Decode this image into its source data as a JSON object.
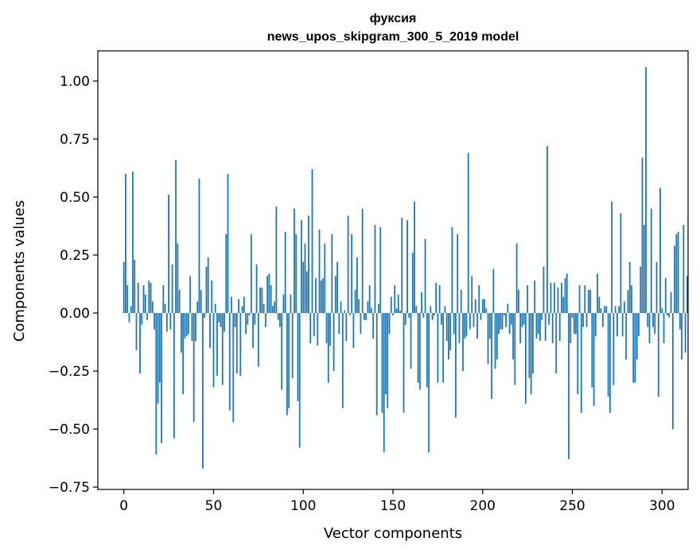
{
  "chart_data": {
    "type": "bar",
    "title": "фуксия",
    "subtitle": "news_upos_skipgram_300_5_2019 model",
    "xlabel": "Vector components",
    "ylabel": "Components values",
    "xlim": [
      -14.5,
      314.5
    ],
    "ylim": [
      -0.76,
      1.13
    ],
    "xticks": [
      0,
      50,
      100,
      150,
      200,
      250,
      300
    ],
    "xtick_labels": [
      "0",
      "50",
      "100",
      "150",
      "200",
      "250",
      "300"
    ],
    "yticks": [
      -0.75,
      -0.5,
      -0.25,
      0.0,
      0.25,
      0.5,
      0.75,
      1.0
    ],
    "ytick_labels": [
      "−0.75",
      "−0.50",
      "−0.25",
      "0.00",
      "0.25",
      "0.50",
      "0.75",
      "1.00"
    ],
    "grid": false,
    "bar_color": "#1f77b4",
    "values": [
      0.22,
      0.6,
      0.12,
      -0.04,
      0.03,
      0.61,
      0.23,
      -0.16,
      0.13,
      -0.26,
      -0.05,
      0.12,
      0.08,
      -0.03,
      0.14,
      0.13,
      0.05,
      -0.07,
      -0.61,
      -0.39,
      -0.3,
      -0.56,
      0.12,
      0.04,
      -0.08,
      0.51,
      -0.07,
      0.21,
      -0.54,
      0.66,
      0.3,
      0.1,
      -0.17,
      -0.35,
      -0.11,
      -0.1,
      -0.09,
      0.16,
      -0.12,
      -0.47,
      -0.12,
      0.05,
      0.58,
      0.1,
      -0.67,
      -0.02,
      0.2,
      0.24,
      -0.15,
      0.14,
      -0.32,
      0.04,
      -0.27,
      -0.04,
      -0.06,
      -0.31,
      -0.08,
      0.34,
      0.6,
      -0.42,
      0.07,
      -0.47,
      -0.06,
      -0.26,
      0.06,
      -0.27,
      0.03,
      0.07,
      -0.09,
      -0.05,
      -0.01,
      0.34,
      -0.15,
      -0.05,
      0.21,
      -0.23,
      0.11,
      0.11,
      0.04,
      -0.06,
      0.16,
      0.17,
      0.12,
      0.03,
      0.05,
      0.46,
      -0.03,
      -0.06,
      -0.33,
      0.08,
      0.35,
      -0.44,
      -0.41,
      0.08,
      -0.28,
      0.45,
      0.34,
      -0.38,
      -0.58,
      0.4,
      0.22,
      0.3,
      0.18,
      0.42,
      -0.13,
      0.62,
      -0.1,
      0.15,
      -0.14,
      0.36,
      0.14,
      0.15,
      0.3,
      -0.13,
      -0.3,
      -0.14,
      0.34,
      -0.25,
      0.16,
      0.22,
      -0.09,
      0.05,
      -0.41,
      0.01,
      -0.12,
      0.42,
      -0.01,
      0.34,
      -0.15,
      0.1,
      0.24,
      0.06,
      -0.09,
      0.45,
      -0.03,
      -0.03,
      0.05,
      0.12,
      0.02,
      -0.11,
      0.38,
      -0.44,
      0.04,
      0.37,
      -0.43,
      -0.6,
      -0.35,
      -0.41,
      -0.09,
      0.07,
      -0.01,
      0.12,
      0.02,
      0.08,
      0.01,
      0.41,
      -0.43,
      -0.05,
      0.4,
      -0.02,
      -0.24,
      0.26,
      0.48,
      0.03,
      -0.3,
      -0.33,
      0.09,
      -0.02,
      0.32,
      -0.32,
      -0.6,
      0.03,
      -0.03,
      -0.01,
      0.13,
      -0.3,
      0.12,
      -0.05,
      -0.3,
      0.03,
      -0.12,
      -0.2,
      -0.16,
      0.37,
      -0.09,
      -0.45,
      0.34,
      -0.13,
      0.1,
      -0.25,
      -0.11,
      -0.1,
      0.69,
      -0.07,
      0.16,
      -0.06,
      0.06,
      -0.11,
      0.12,
      -0.03,
      0.06,
      0.06,
      0.02,
      -0.22,
      -0.11,
      -0.37,
      0.19,
      -0.24,
      -0.2,
      -0.09,
      -0.07,
      -0.07,
      -0.01,
      -0.06,
      0.04,
      -0.09,
      -0.05,
      -0.2,
      -0.31,
      0.3,
      0.1,
      -0.13,
      -0.06,
      -0.05,
      -0.39,
      0.12,
      -0.28,
      -0.35,
      -0.26,
      0.14,
      -0.11,
      -0.09,
      -0.12,
      -0.03,
      0.2,
      -0.12,
      0.72,
      -0.05,
      0.13,
      -0.13,
      0.13,
      -0.26,
      0.11,
      -0.12,
      0.13,
      0.07,
      0.15,
      0.17,
      -0.63,
      -0.13,
      -0.02,
      -0.09,
      -0.09,
      -0.35,
      0.12,
      -0.43,
      -0.06,
      0.12,
      -0.06,
      0.1,
      0.1,
      -0.32,
      -0.4,
      -0.1,
      0.17,
      0.07,
      0.02,
      -0.06,
      0.03,
      0.03,
      -0.36,
      -0.43,
      0.48,
      -0.31,
      0.03,
      -0.1,
      0.03,
      0.43,
      -0.1,
      0.05,
      -0.2,
      0.1,
      0.22,
      0.12,
      -0.3,
      -0.3,
      -0.2,
      -0.1,
      0.2,
      0.67,
      0.38,
      1.06,
      -0.06,
      -0.13,
      0.45,
      -0.06,
      -0.09,
      0.22,
      -0.36,
      0.54,
      0.02,
      -0.13,
      0.15,
      -0.01,
      -0.02,
      0.09,
      -0.5,
      0.29,
      0.34,
      0.35,
      -0.07,
      -0.2,
      0.38,
      -0.17,
      0.16
    ]
  }
}
